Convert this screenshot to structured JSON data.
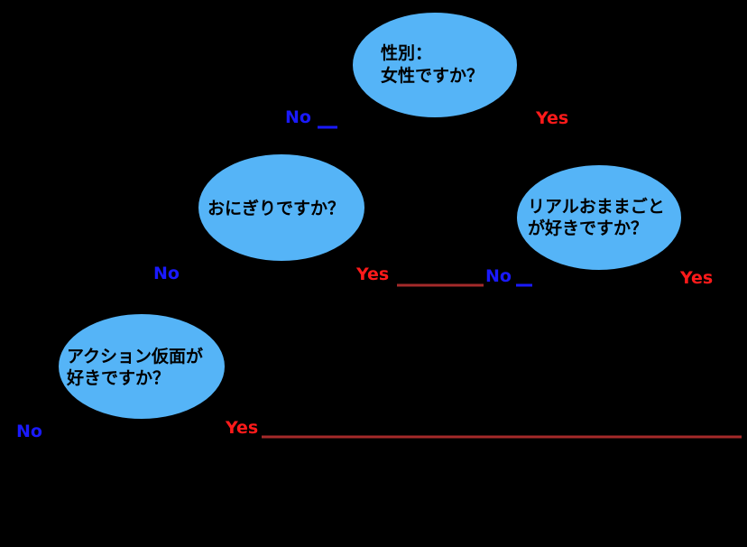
{
  "colors": {
    "background": "#000000",
    "node_fill": "#55b4f7",
    "no_label": "#1a1aff",
    "yes_label": "#ff1a1a",
    "connector": "#a52a2a"
  },
  "nodes": {
    "gender": {
      "line1": "性別：",
      "line2": "女性ですか？"
    },
    "onigiri": {
      "line1": "おにぎりですか？"
    },
    "mamagoto": {
      "line1": "リアルおままごと",
      "line2": "が好きですか？"
    },
    "kamen": {
      "line1": "アクション仮面が",
      "line2": "好きですか？"
    }
  },
  "branches": {
    "gender_no": "No",
    "gender_yes": "Yes",
    "onigiri_no": "No",
    "onigiri_yes": "Yes",
    "mamagoto_no": "No",
    "mamagoto_yes": "Yes",
    "kamen_no": "No",
    "kamen_yes": "Yes"
  }
}
